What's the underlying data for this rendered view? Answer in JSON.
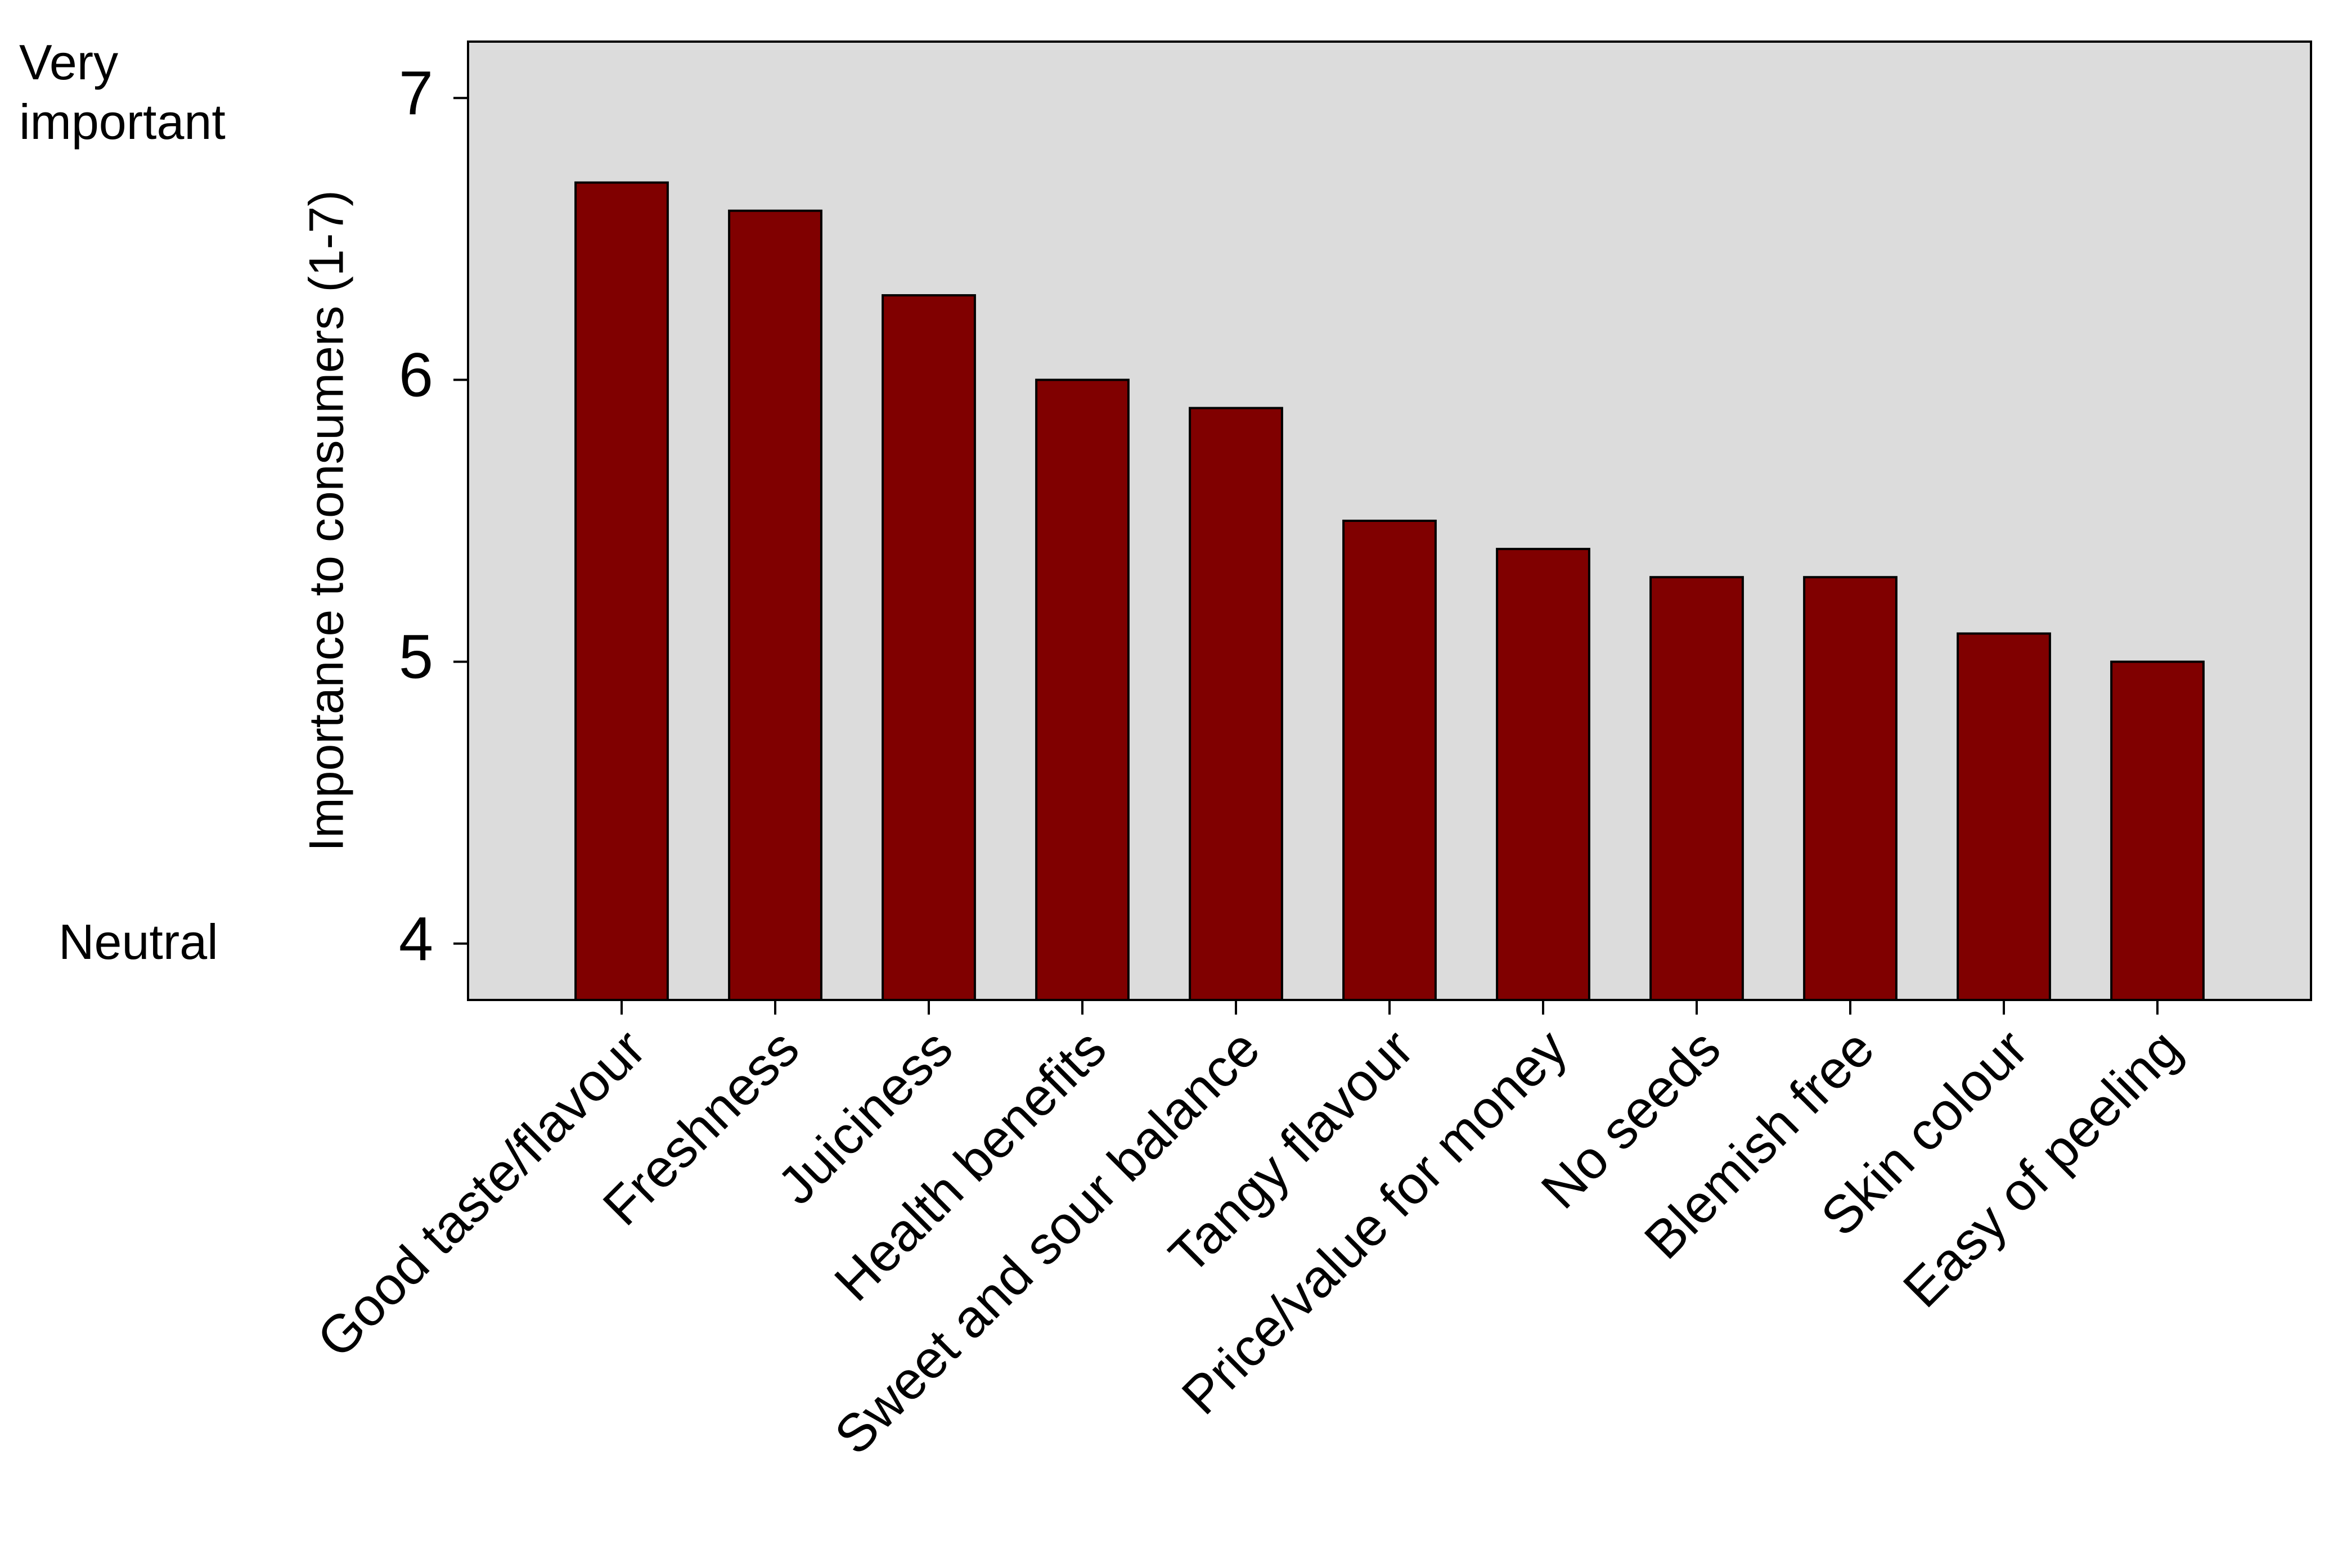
{
  "chart_data": {
    "type": "bar",
    "y_label": "Importance to consumers (1-7)",
    "annotations": [
      "Very important",
      "Neutral"
    ],
    "categories": [
      "Good taste/flavour",
      "Freshness",
      "Juiciness",
      "Health benefits",
      "Sweet and sour balance",
      "Tangy flavour",
      "Price/value for money",
      "No seeds",
      "Blemish free",
      "Skin colour",
      "Easy of peeling"
    ],
    "values": [
      6.7,
      6.6,
      6.3,
      6.0,
      5.9,
      5.5,
      5.4,
      5.3,
      5.3,
      5.1,
      5.0
    ],
    "color": "#800000",
    "background": "#dcdcdc",
    "ylim": [
      3.8,
      7.2
    ],
    "yticks": [
      4,
      5,
      6,
      7
    ],
    "grid": false
  }
}
